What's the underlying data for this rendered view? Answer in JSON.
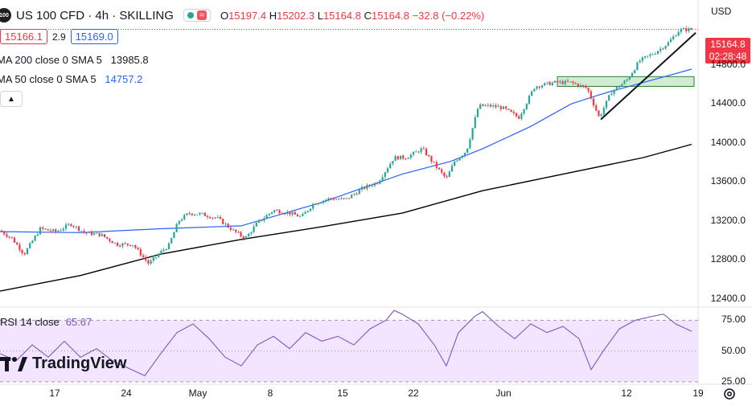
{
  "header": {
    "symbol_badge": "100",
    "title": "US 100 CFD · 4h · SKILLING",
    "pill_wave": "≈",
    "ohlc": {
      "o_label": "O",
      "o": "15197.4",
      "h_label": "H",
      "h": "15202.3",
      "l_label": "L",
      "l": "15164.8",
      "c_label": "C",
      "c": "15164.8",
      "change": "−32.8 (−0.22%)"
    },
    "sell": "15166.1",
    "spread": "2.9",
    "buy": "15169.0",
    "ma200": {
      "label": "MA 200 close 0 SMA 5",
      "value": "13985.8"
    },
    "ma50": {
      "label": "MA 50 close 0 SMA 5",
      "value": "14757.2"
    },
    "collapse_icon": "chevron-up-icon"
  },
  "price_axis": {
    "currency": "USD",
    "ticks": [
      "14800.0",
      "14400.0",
      "14000.0",
      "13600.0",
      "13200.0",
      "12800.0",
      "12400.0"
    ],
    "last_price": "15164.8",
    "countdown": "02:28:48"
  },
  "rsi": {
    "label": "RSI 14 close",
    "value": "65.67",
    "ticks": [
      "75.00",
      "50.00",
      "25.00"
    ]
  },
  "x_axis": {
    "labels": [
      "17",
      "24",
      "May",
      "8",
      "15",
      "22",
      "Jun",
      "12",
      "19"
    ]
  },
  "logo": {
    "text": "TradingView"
  },
  "colors": {
    "up": "#26a69a",
    "down": "#f23645",
    "ma50": "#2962ff",
    "ma200": "#000000",
    "rsi": "#7e57c2",
    "rsi_band": "#f3e5ff"
  },
  "chart_data": {
    "type": "candlestick",
    "ylim": [
      12250,
      15400
    ],
    "rsi_ylim": [
      25,
      85
    ],
    "anchors": {
      "price": [
        [
          0,
          13100
        ],
        [
          15,
          13020
        ],
        [
          30,
          12860
        ],
        [
          50,
          13120
        ],
        [
          70,
          13090
        ],
        [
          88,
          13170
        ],
        [
          105,
          13080
        ],
        [
          125,
          13060
        ],
        [
          145,
          12960
        ],
        [
          165,
          12960
        ],
        [
          185,
          12760
        ],
        [
          200,
          12880
        ],
        [
          210,
          12950
        ],
        [
          222,
          13200
        ],
        [
          235,
          13280
        ],
        [
          250,
          13270
        ],
        [
          270,
          13230
        ],
        [
          290,
          13100
        ],
        [
          305,
          13020
        ],
        [
          320,
          13180
        ],
        [
          340,
          13310
        ],
        [
          360,
          13280
        ],
        [
          375,
          13240
        ],
        [
          390,
          13380
        ],
        [
          410,
          13430
        ],
        [
          430,
          13420
        ],
        [
          450,
          13530
        ],
        [
          470,
          13600
        ],
        [
          490,
          13850
        ],
        [
          505,
          13850
        ],
        [
          525,
          13940
        ],
        [
          540,
          13780
        ],
        [
          555,
          13630
        ],
        [
          565,
          13810
        ],
        [
          580,
          13920
        ],
        [
          595,
          14380
        ],
        [
          610,
          14380
        ],
        [
          625,
          14360
        ],
        [
          645,
          14260
        ],
        [
          665,
          14580
        ],
        [
          690,
          14620
        ],
        [
          710,
          14620
        ],
        [
          730,
          14560
        ],
        [
          745,
          14260
        ],
        [
          760,
          14520
        ],
        [
          780,
          14650
        ],
        [
          795,
          14840
        ],
        [
          815,
          14930
        ],
        [
          830,
          15020
        ],
        [
          845,
          15160
        ],
        [
          860,
          15165
        ]
      ],
      "ma50": [
        [
          0,
          13090
        ],
        [
          100,
          13080
        ],
        [
          200,
          13120
        ],
        [
          300,
          13150
        ],
        [
          400,
          13390
        ],
        [
          500,
          13680
        ],
        [
          560,
          13810
        ],
        [
          600,
          13940
        ],
        [
          660,
          14170
        ],
        [
          710,
          14400
        ],
        [
          740,
          14480
        ],
        [
          760,
          14530
        ],
        [
          800,
          14620
        ],
        [
          860,
          14757
        ]
      ],
      "ma200": [
        [
          0,
          12480
        ],
        [
          100,
          12640
        ],
        [
          200,
          12860
        ],
        [
          300,
          13010
        ],
        [
          400,
          13140
        ],
        [
          500,
          13280
        ],
        [
          600,
          13510
        ],
        [
          700,
          13680
        ],
        [
          800,
          13850
        ],
        [
          860,
          13986
        ]
      ],
      "rsi": [
        [
          0,
          48
        ],
        [
          20,
          42
        ],
        [
          40,
          55
        ],
        [
          60,
          45
        ],
        [
          80,
          58
        ],
        [
          100,
          45
        ],
        [
          120,
          52
        ],
        [
          140,
          42
        ],
        [
          160,
          36
        ],
        [
          180,
          30
        ],
        [
          200,
          48
        ],
        [
          220,
          65
        ],
        [
          240,
          72
        ],
        [
          260,
          60
        ],
        [
          280,
          45
        ],
        [
          300,
          38
        ],
        [
          320,
          55
        ],
        [
          340,
          62
        ],
        [
          360,
          52
        ],
        [
          380,
          65
        ],
        [
          400,
          58
        ],
        [
          420,
          62
        ],
        [
          440,
          55
        ],
        [
          460,
          68
        ],
        [
          480,
          75
        ],
        [
          490,
          83
        ],
        [
          500,
          80
        ],
        [
          520,
          72
        ],
        [
          540,
          55
        ],
        [
          555,
          38
        ],
        [
          570,
          65
        ],
        [
          590,
          78
        ],
        [
          600,
          82
        ],
        [
          620,
          70
        ],
        [
          640,
          60
        ],
        [
          660,
          72
        ],
        [
          680,
          65
        ],
        [
          700,
          70
        ],
        [
          720,
          60
        ],
        [
          735,
          35
        ],
        [
          750,
          50
        ],
        [
          770,
          68
        ],
        [
          790,
          75
        ],
        [
          810,
          78
        ],
        [
          825,
          80
        ],
        [
          840,
          72
        ],
        [
          860,
          66
        ]
      ]
    },
    "trendline": [
      [
        10.8,
        14240
      ],
      [
        16.6,
        15120
      ]
    ],
    "zone": {
      "x0": 8.0,
      "x1": 17.7,
      "y0": 14580,
      "y1": 14680
    }
  }
}
